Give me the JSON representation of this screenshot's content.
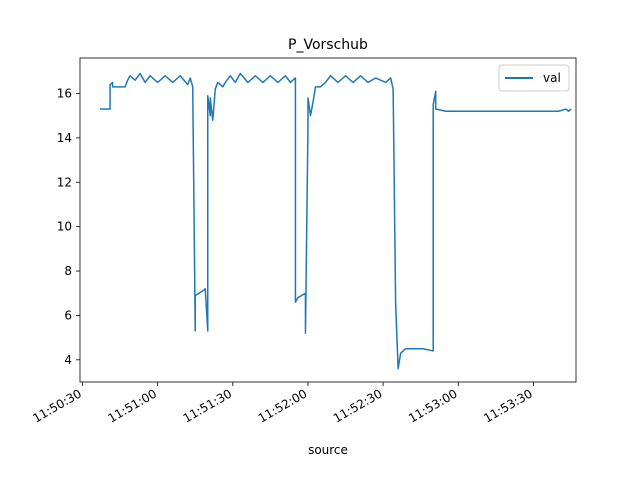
{
  "chart_data": {
    "type": "line",
    "title": "P_Vorschub",
    "xlabel": "source",
    "ylabel": "",
    "x_start": "11:50:29",
    "x_end": "11:53:47",
    "x_ticks": [
      "11:50:30",
      "11:51:00",
      "11:51:30",
      "11:52:00",
      "11:52:30",
      "11:53:00",
      "11:53:30"
    ],
    "ylim": [
      3.0,
      17.6
    ],
    "y_ticks": [
      4,
      6,
      8,
      10,
      12,
      14,
      16
    ],
    "grid": false,
    "legend_position": "top-right",
    "series": [
      {
        "name": "val",
        "color": "#1f77b4",
        "points": [
          [
            "11:50:37",
            15.3
          ],
          [
            "11:50:41",
            15.3
          ],
          [
            "11:50:41",
            16.4
          ],
          [
            "11:50:42",
            16.5
          ],
          [
            "11:50:42",
            16.3
          ],
          [
            "11:50:47",
            16.3
          ],
          [
            "11:50:48",
            16.6
          ],
          [
            "11:50:49",
            16.8
          ],
          [
            "11:50:51",
            16.6
          ],
          [
            "11:50:53",
            16.9
          ],
          [
            "11:50:55",
            16.5
          ],
          [
            "11:50:57",
            16.8
          ],
          [
            "11:51:00",
            16.5
          ],
          [
            "11:51:03",
            16.8
          ],
          [
            "11:51:06",
            16.5
          ],
          [
            "11:51:09",
            16.8
          ],
          [
            "11:51:12",
            16.4
          ],
          [
            "11:51:13",
            16.7
          ],
          [
            "11:51:14",
            16.3
          ],
          [
            "11:51:15",
            5.3
          ],
          [
            "11:51:15",
            6.9
          ],
          [
            "11:51:18",
            7.1
          ],
          [
            "11:51:19",
            7.2
          ],
          [
            "11:51:20",
            5.3
          ],
          [
            "11:51:20",
            15.9
          ],
          [
            "11:51:21",
            15.0
          ],
          [
            "11:51:21",
            15.8
          ],
          [
            "11:51:22",
            14.8
          ],
          [
            "11:51:23",
            16.2
          ],
          [
            "11:51:24",
            16.5
          ],
          [
            "11:51:26",
            16.3
          ],
          [
            "11:51:27",
            16.5
          ],
          [
            "11:51:29",
            16.8
          ],
          [
            "11:51:31",
            16.5
          ],
          [
            "11:51:33",
            16.9
          ],
          [
            "11:51:36",
            16.5
          ],
          [
            "11:51:39",
            16.8
          ],
          [
            "11:51:42",
            16.5
          ],
          [
            "11:51:45",
            16.8
          ],
          [
            "11:51:48",
            16.5
          ],
          [
            "11:51:51",
            16.8
          ],
          [
            "11:51:53",
            16.5
          ],
          [
            "11:51:55",
            16.7
          ],
          [
            "11:51:55",
            6.6
          ],
          [
            "11:51:56",
            6.8
          ],
          [
            "11:51:59",
            7.0
          ],
          [
            "11:51:59",
            5.2
          ],
          [
            "11:52:00",
            14.5
          ],
          [
            "11:52:00",
            15.8
          ],
          [
            "11:52:01",
            15.0
          ],
          [
            "11:52:02",
            15.6
          ],
          [
            "11:52:03",
            16.3
          ],
          [
            "11:52:05",
            16.3
          ],
          [
            "11:52:07",
            16.5
          ],
          [
            "11:52:09",
            16.8
          ],
          [
            "11:52:12",
            16.5
          ],
          [
            "11:52:15",
            16.8
          ],
          [
            "11:52:18",
            16.5
          ],
          [
            "11:52:21",
            16.8
          ],
          [
            "11:52:24",
            16.5
          ],
          [
            "11:52:27",
            16.7
          ],
          [
            "11:52:31",
            16.5
          ],
          [
            "11:52:33",
            16.7
          ],
          [
            "11:52:34",
            16.2
          ],
          [
            "11:52:35",
            6.5
          ],
          [
            "11:52:36",
            3.6
          ],
          [
            "11:52:37",
            4.3
          ],
          [
            "11:52:39",
            4.5
          ],
          [
            "11:52:46",
            4.5
          ],
          [
            "11:52:50",
            4.4
          ],
          [
            "11:52:50",
            15.5
          ],
          [
            "11:52:51",
            16.1
          ],
          [
            "11:52:51",
            15.3
          ],
          [
            "11:52:55",
            15.2
          ],
          [
            "11:53:20",
            15.2
          ],
          [
            "11:53:40",
            15.2
          ],
          [
            "11:53:43",
            15.3
          ],
          [
            "11:53:44",
            15.2
          ],
          [
            "11:53:45",
            15.3
          ]
        ]
      }
    ]
  }
}
